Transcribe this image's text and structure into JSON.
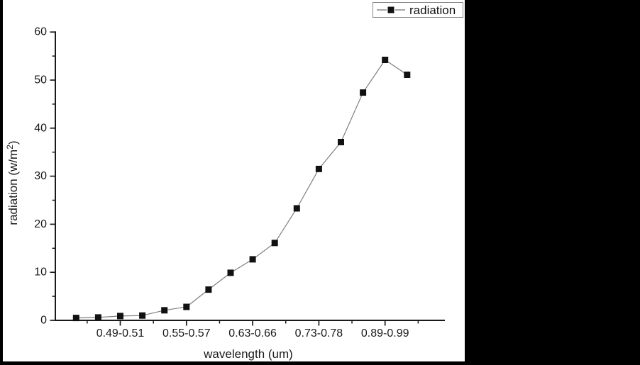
{
  "chart_data": {
    "type": "line",
    "title": "",
    "xlabel": "wavelength (um)",
    "ylabel": "radiation (w/m²)",
    "legend": [
      "radiation"
    ],
    "legend_position": "top-right",
    "grid": false,
    "ylim": [
      0,
      60
    ],
    "y_major_ticks": [
      0,
      10,
      20,
      30,
      40,
      50,
      60
    ],
    "y_minor_tick_step": 5,
    "x_tick_labels": [
      "0.49-0.51",
      "0.55-0.57",
      "0.63-0.66",
      "0.73-0.78",
      "0.89-0.99"
    ],
    "categories": [
      "",
      "",
      "0.49-0.51",
      "",
      "",
      "0.55-0.57",
      "",
      "",
      "0.63-0.66",
      "",
      "",
      "0.73-0.78",
      "",
      "",
      "0.89-0.99",
      ""
    ],
    "series": [
      {
        "name": "radiation",
        "marker": "filled-square",
        "values": [
          0.5,
          0.6,
          0.9,
          1.0,
          2.1,
          2.8,
          6.4,
          9.9,
          12.7,
          16.1,
          23.3,
          31.5,
          37.1,
          47.4,
          54.2,
          51.1
        ]
      }
    ]
  },
  "colors": {
    "axis": "#1a1a1a",
    "tick_text": "#1a1a1a",
    "series_line": "#7f7f7f",
    "marker_fill": "#111111",
    "legend_border": "#8a8a8a",
    "crop_black": "#000000",
    "background": "#ffffff"
  }
}
